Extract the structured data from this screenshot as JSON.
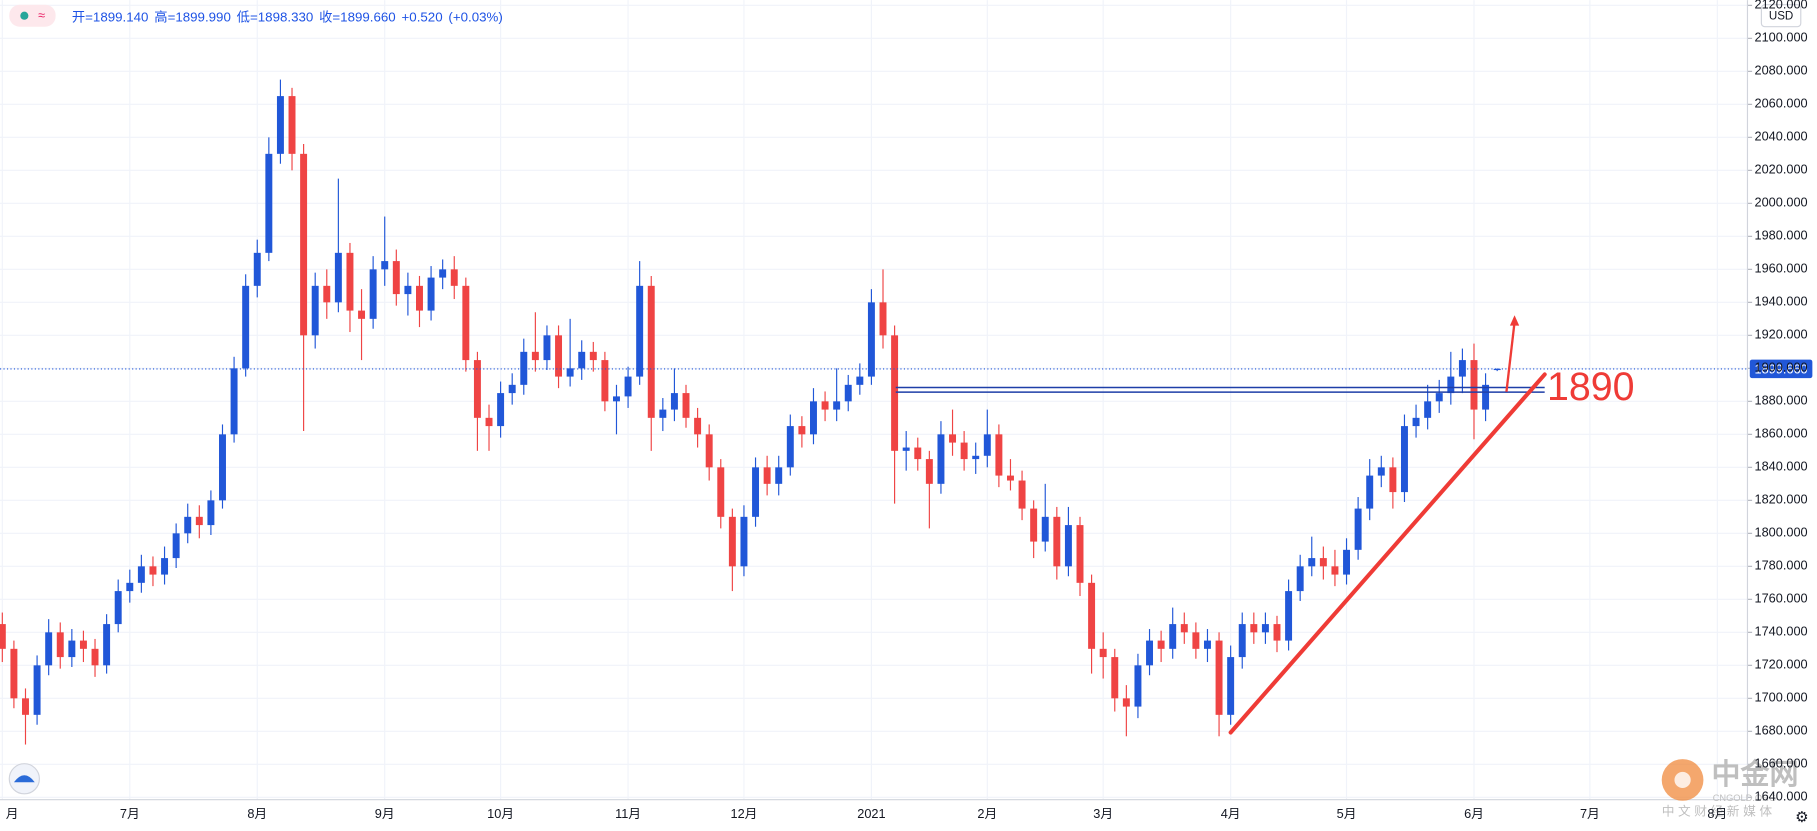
{
  "chart_data": {
    "type": "candlestick",
    "header": [
      "开=1899.140",
      "高=1899.990",
      "低=1898.330",
      "收=1899.660",
      "+0.520",
      "(+0.03%)"
    ],
    "currency": "USD",
    "last_price": {
      "value": 1899.66,
      "label": "1899.660"
    },
    "up_color": "#2157d8",
    "down_color": "#ef4444",
    "grid": true,
    "axis_side": "right",
    "categories": [
      "月",
      null,
      null,
      null,
      null,
      null,
      null,
      null,
      null,
      null,
      null,
      "7月",
      null,
      null,
      null,
      null,
      null,
      null,
      null,
      null,
      null,
      null,
      "8月",
      null,
      null,
      null,
      null,
      null,
      null,
      null,
      null,
      null,
      null,
      "9月",
      null,
      null,
      null,
      null,
      null,
      null,
      null,
      null,
      null,
      "10月",
      null,
      null,
      null,
      null,
      null,
      null,
      null,
      null,
      null,
      null,
      "11月",
      null,
      null,
      null,
      null,
      null,
      null,
      null,
      null,
      null,
      "12月",
      null,
      null,
      null,
      null,
      null,
      null,
      null,
      null,
      null,
      null,
      "2021",
      null,
      null,
      null,
      null,
      null,
      null,
      null,
      null,
      null,
      "2月",
      null,
      null,
      null,
      null,
      null,
      null,
      null,
      null,
      null,
      "3月",
      null,
      null,
      null,
      null,
      null,
      null,
      null,
      null,
      null,
      null,
      "4月",
      null,
      null,
      null,
      null,
      null,
      null,
      null,
      null,
      null,
      "5月",
      null,
      null,
      null,
      null,
      null,
      null,
      null,
      null,
      null,
      null,
      "6月",
      null,
      null,
      null,
      null,
      null,
      null,
      null,
      null,
      null,
      "7月",
      null,
      null,
      null,
      null,
      null,
      null,
      null,
      null,
      null,
      null,
      "8月",
      null
    ],
    "open": [
      1745,
      1730,
      1700,
      1690,
      1720,
      1740,
      1725,
      1735,
      1730,
      1720,
      1745,
      1765,
      1770,
      1780,
      1775,
      1785,
      1800,
      1810,
      1805,
      1820,
      1860,
      1900,
      1950,
      1970,
      2030,
      2065,
      2030,
      1920,
      1950,
      1940,
      1970,
      1935,
      1930,
      1960,
      1965,
      1945,
      1950,
      1935,
      1955,
      1960,
      1950,
      1905,
      1870,
      1865,
      1885,
      1890,
      1910,
      1905,
      1920,
      1895,
      1900,
      1910,
      1905,
      1880,
      1883,
      1895,
      1950,
      1870,
      1875,
      1885,
      1870,
      1860,
      1840,
      1810,
      1780,
      1810,
      1840,
      1830,
      1840,
      1865,
      1860,
      1880,
      1875,
      1880,
      1890,
      1895,
      1940,
      1920,
      1850,
      1852,
      1845,
      1830,
      1860,
      1855,
      1845,
      1847,
      1860,
      1835,
      1832,
      1815,
      1795,
      1810,
      1780,
      1805,
      1770,
      1730,
      1725,
      1700,
      1695,
      1720,
      1735,
      1730,
      1745,
      1740,
      1730,
      1735,
      1690,
      1725,
      1745,
      1740,
      1745,
      1735,
      1765,
      1780,
      1785,
      1780,
      1775,
      1790,
      1815,
      1835,
      1840,
      1825,
      1865,
      1870,
      1880,
      1885,
      1895,
      1905,
      1875,
      1899.14,
      null,
      null,
      null,
      null,
      null,
      null,
      null,
      null,
      null,
      null,
      null,
      null,
      null,
      null,
      null,
      null,
      null,
      null,
      null,
      null
    ],
    "high": [
      1752,
      1735,
      1706,
      1726,
      1748,
      1746,
      1742,
      1741,
      1736,
      1751,
      1772,
      1778,
      1787,
      1786,
      1792,
      1806,
      1818,
      1817,
      1826,
      1866,
      1907,
      1957,
      1978,
      2040,
      2075,
      2070,
      2036,
      1958,
      1960,
      2015,
      1976,
      1948,
      1968,
      1992,
      1972,
      1958,
      1956,
      1962,
      1966,
      1968,
      1955,
      1910,
      1878,
      1892,
      1897,
      1918,
      1934,
      1926,
      1926,
      1930,
      1917,
      1916,
      1910,
      1890,
      1901,
      1965,
      1956,
      1882,
      1900,
      1890,
      1876,
      1866,
      1845,
      1815,
      1817,
      1846,
      1847,
      1847,
      1872,
      1871,
      1888,
      1886,
      1900,
      1896,
      1903,
      1948,
      1960,
      1926,
      1862,
      1858,
      1850,
      1868,
      1875,
      1862,
      1855,
      1875,
      1866,
      1845,
      1838,
      1820,
      1830,
      1816,
      1816,
      1810,
      1775,
      1740,
      1730,
      1708,
      1727,
      1742,
      1741,
      1755,
      1752,
      1746,
      1742,
      1740,
      1732,
      1752,
      1752,
      1752,
      1750,
      1772,
      1787,
      1798,
      1792,
      1790,
      1797,
      1822,
      1845,
      1847,
      1846,
      1872,
      1878,
      1890,
      1893,
      1910,
      1912,
      1915,
      1897,
      1899.99,
      null,
      null,
      null,
      null,
      null,
      null,
      null,
      null,
      null,
      null,
      null,
      null,
      null,
      null,
      null,
      null,
      null,
      null,
      null,
      null
    ],
    "low": [
      1722,
      1694,
      1672,
      1684,
      1714,
      1718,
      1719,
      1722,
      1713,
      1715,
      1740,
      1758,
      1764,
      1768,
      1769,
      1779,
      1794,
      1797,
      1799,
      1815,
      1855,
      1895,
      1943,
      1965,
      2024,
      2020,
      1862,
      1912,
      1930,
      1934,
      1922,
      1905,
      1924,
      1950,
      1938,
      1932,
      1925,
      1929,
      1948,
      1942,
      1898,
      1850,
      1850,
      1858,
      1878,
      1884,
      1898,
      1899,
      1888,
      1889,
      1893,
      1898,
      1874,
      1860,
      1876,
      1890,
      1850,
      1862,
      1868,
      1864,
      1852,
      1832,
      1803,
      1765,
      1774,
      1804,
      1823,
      1823,
      1835,
      1852,
      1854,
      1868,
      1868,
      1874,
      1884,
      1890,
      1912,
      1818,
      1838,
      1838,
      1803,
      1824,
      1847,
      1838,
      1836,
      1840,
      1828,
      1826,
      1808,
      1785,
      1789,
      1772,
      1774,
      1762,
      1715,
      1712,
      1692,
      1677,
      1688,
      1714,
      1722,
      1724,
      1733,
      1724,
      1722,
      1677,
      1684,
      1718,
      1733,
      1733,
      1728,
      1729,
      1759,
      1774,
      1772,
      1768,
      1769,
      1784,
      1808,
      1828,
      1815,
      1819,
      1858,
      1863,
      1873,
      1878,
      1885,
      1857,
      1868,
      1898.33,
      null,
      null,
      null,
      null,
      null,
      null,
      null,
      null,
      null,
      null,
      null,
      null,
      null,
      null,
      null,
      null,
      null,
      null,
      null,
      null
    ],
    "close": [
      1730,
      1700,
      1690,
      1720,
      1740,
      1725,
      1735,
      1730,
      1720,
      1745,
      1765,
      1770,
      1780,
      1775,
      1785,
      1800,
      1810,
      1805,
      1820,
      1860,
      1900,
      1950,
      1970,
      2030,
      2065,
      2030,
      1920,
      1950,
      1940,
      1970,
      1935,
      1930,
      1960,
      1965,
      1945,
      1950,
      1935,
      1955,
      1960,
      1950,
      1905,
      1870,
      1865,
      1885,
      1890,
      1910,
      1905,
      1920,
      1895,
      1900,
      1910,
      1905,
      1880,
      1883,
      1895,
      1950,
      1870,
      1875,
      1885,
      1870,
      1860,
      1840,
      1810,
      1780,
      1810,
      1840,
      1830,
      1840,
      1865,
      1860,
      1880,
      1875,
      1880,
      1890,
      1895,
      1940,
      1920,
      1850,
      1852,
      1845,
      1830,
      1860,
      1855,
      1845,
      1847,
      1860,
      1835,
      1832,
      1815,
      1795,
      1810,
      1780,
      1805,
      1770,
      1730,
      1725,
      1700,
      1695,
      1720,
      1735,
      1730,
      1745,
      1740,
      1730,
      1735,
      1690,
      1725,
      1745,
      1740,
      1745,
      1735,
      1765,
      1780,
      1785,
      1780,
      1775,
      1790,
      1815,
      1835,
      1840,
      1825,
      1865,
      1870,
      1880,
      1885,
      1895,
      1905,
      1875,
      1890,
      1899.66,
      null,
      null,
      null,
      null,
      null,
      null,
      null,
      null,
      null,
      null,
      null,
      null,
      null,
      null,
      null,
      null,
      null,
      null,
      null,
      null
    ],
    "ylim": [
      1638.6,
      2123.2
    ],
    "yticks": [
      {
        "value": 1640,
        "label": "1640.000"
      },
      {
        "value": 1660,
        "label": "1660.000"
      },
      {
        "value": 1680,
        "label": "1680.000"
      },
      {
        "value": 1700,
        "label": "1700.000"
      },
      {
        "value": 1720,
        "label": "1720.000"
      },
      {
        "value": 1740,
        "label": "1740.000"
      },
      {
        "value": 1760,
        "label": "1760.000"
      },
      {
        "value": 1780,
        "label": "1780.000"
      },
      {
        "value": 1800,
        "label": "1800.000"
      },
      {
        "value": 1820,
        "label": "1820.000"
      },
      {
        "value": 1840,
        "label": "1840.000"
      },
      {
        "value": 1860,
        "label": "1860.000"
      },
      {
        "value": 1880,
        "label": "1880.000"
      },
      {
        "value": 1900,
        "label": "1900.000"
      },
      {
        "value": 1920,
        "label": "1920.000"
      },
      {
        "value": 1940,
        "label": "1940.000"
      },
      {
        "value": 1960,
        "label": "1960.000"
      },
      {
        "value": 1980,
        "label": "1980.000"
      },
      {
        "value": 2000,
        "label": "2000.000"
      },
      {
        "value": 2020,
        "label": "2020.000"
      },
      {
        "value": 2040,
        "label": "2040.000"
      },
      {
        "value": 2060,
        "label": "2060.000"
      },
      {
        "value": 2080,
        "label": "2080.000"
      },
      {
        "value": 2100,
        "label": "2100.000"
      },
      {
        "value": 2120,
        "label": "2120.000"
      }
    ],
    "hline": {
      "y": 1887,
      "x": [
        77.1,
        133.1
      ],
      "color": "#1e3fa8"
    },
    "trendline": {
      "x": [
        106,
        133.1
      ],
      "y": [
        1679.3,
        1896.3
      ],
      "color": "#ef3b36"
    },
    "arrow": {
      "x": [
        129.8,
        130.5
      ],
      "y": [
        1885.8,
        1932.2
      ],
      "color": "#ef3b36"
    },
    "annotation": {
      "text": "1890",
      "color": "#ef3b36"
    },
    "watermark": {
      "title": "中金网",
      "subtitle": "CNGOLD.ORG",
      "tagline": "中 文 财 经 新 媒 体"
    }
  }
}
